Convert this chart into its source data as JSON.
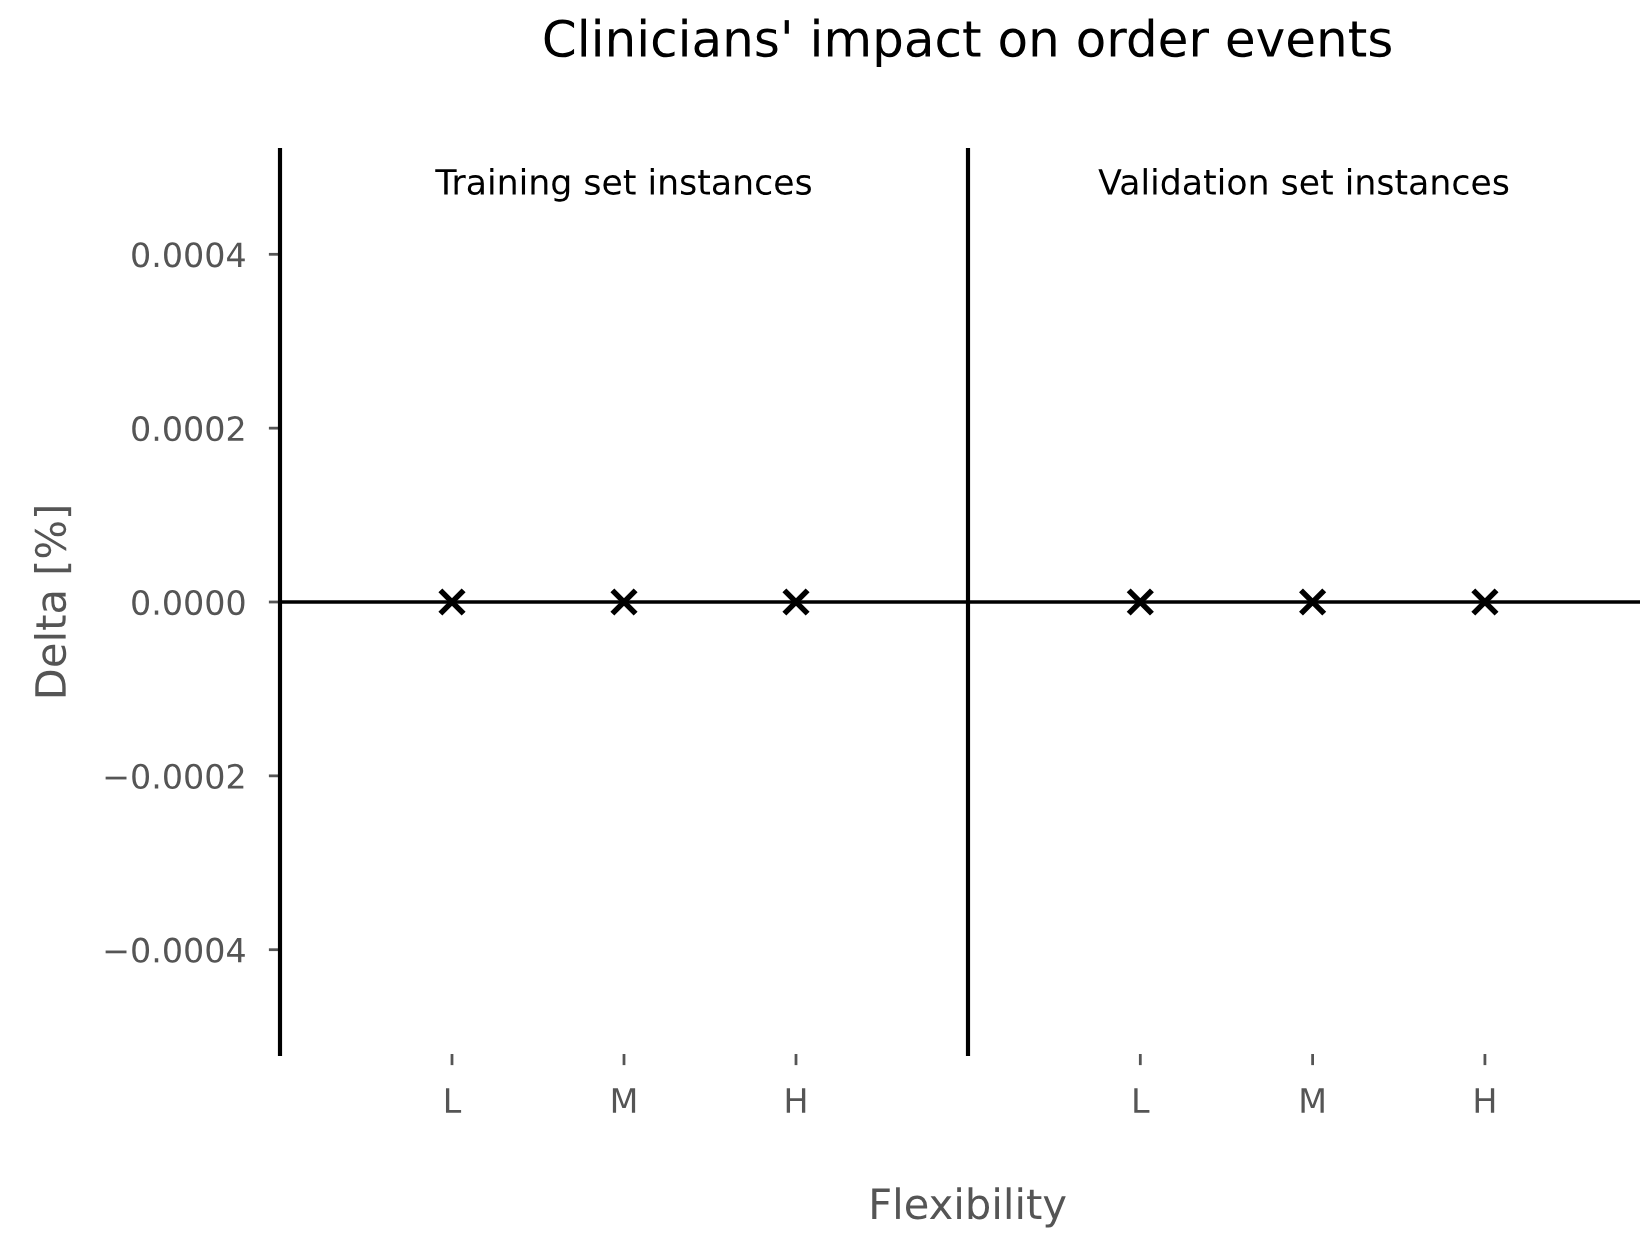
{
  "chart_data": [
    {
      "type": "scatter",
      "title": "Clinicians' impact on order events",
      "subtitle": "Training set instances",
      "xlabel": "Flexibility",
      "ylabel": "Delta [%]",
      "categories": [
        "L",
        "M",
        "H"
      ],
      "series": [
        {
          "color": "#000000",
          "values": [
            0,
            0,
            0
          ]
        }
      ],
      "marker": "cross",
      "grid": false,
      "legend": false,
      "ylim": [
        -0.00052,
        0.00052
      ],
      "yticks": [
        {
          "value": -0.0004,
          "label": "−0.0004"
        },
        {
          "value": -0.0002,
          "label": "−0.0002"
        },
        {
          "value": 0,
          "label": "0.0000"
        },
        {
          "value": 0.0002,
          "label": "0.0002"
        },
        {
          "value": 0.0004,
          "label": "0.0004"
        }
      ],
      "ref_lines": [
        {
          "axis": "y",
          "value": 0,
          "color": "#000000"
        }
      ]
    },
    {
      "type": "scatter",
      "subtitle": "Validation set instances",
      "categories": [
        "L",
        "M",
        "H"
      ],
      "series": [
        {
          "color": "#000000",
          "values": [
            0,
            0,
            0
          ]
        }
      ],
      "marker": "cross",
      "grid": false,
      "legend": false,
      "tick_labels": "x",
      "ylim": [
        -0.00052,
        0.00052
      ],
      "ref_lines": [
        {
          "axis": "y",
          "value": 0,
          "color": "#000000"
        }
      ]
    }
  ]
}
